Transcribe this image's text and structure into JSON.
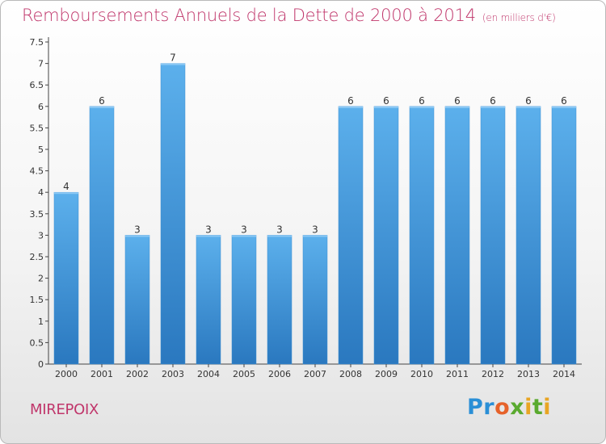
{
  "title": "Remboursements Annuels de la Dette de 2000 à 2014",
  "unit_note": "(en milliers d'€)",
  "commune": "MIREPOIX",
  "logo_text": "Proxiti",
  "colors": {
    "title": "#c0366b",
    "bar_light": "#5cb0ec",
    "bar_dark": "#2a78bf",
    "axis": "#444444"
  },
  "chart_data": {
    "type": "bar",
    "categories": [
      "2000",
      "2001",
      "2002",
      "2003",
      "2004",
      "2005",
      "2006",
      "2007",
      "2008",
      "2009",
      "2010",
      "2011",
      "2012",
      "2013",
      "2014"
    ],
    "values": [
      4,
      6,
      3,
      7,
      3,
      3,
      3,
      3,
      6,
      6,
      6,
      6,
      6,
      6,
      6
    ],
    "data_labels": [
      "4",
      "6",
      "3",
      "7",
      "3",
      "3",
      "3",
      "3",
      "6",
      "6",
      "6",
      "6",
      "6",
      "6",
      "6"
    ],
    "ylim": [
      0,
      7.5
    ],
    "yticks": [
      "0",
      "0.5",
      "1",
      "1.5",
      "2",
      "2.5",
      "3",
      "3.5",
      "4",
      "4.5",
      "5",
      "5.5",
      "6",
      "6.5",
      "7",
      "7.5"
    ],
    "grid": false,
    "xlabel": "",
    "ylabel": ""
  }
}
